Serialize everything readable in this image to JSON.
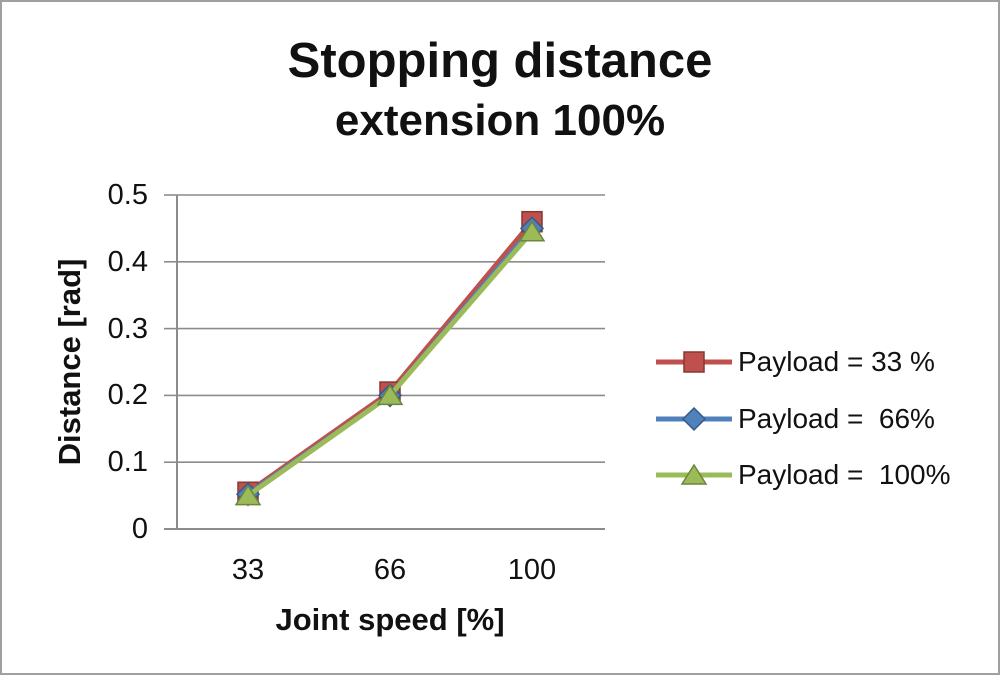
{
  "title": {
    "line1": "Stopping distance",
    "line2": "extension 100%"
  },
  "axes": {
    "y": {
      "title": "Distance [rad]",
      "ticks": [
        "0.5",
        "0.4",
        "0.3",
        "0.2",
        "0.1",
        "0"
      ]
    },
    "x": {
      "title": "Joint speed [%]",
      "ticks": [
        "33",
        "66",
        "100"
      ]
    }
  },
  "legend": {
    "items": [
      {
        "label": "Payload = 33 %",
        "color": "#C0504D",
        "marker": "square"
      },
      {
        "label": "Payload =  66%",
        "color": "#4F81BD",
        "marker": "diamond"
      },
      {
        "label": "Payload =  100%",
        "color": "#9BBB59",
        "marker": "triangle"
      }
    ]
  },
  "chart_data": {
    "type": "line",
    "title": "Stopping distance extension 100%",
    "xlabel": "Joint speed [%]",
    "ylabel": "Distance [rad]",
    "categories": [
      33,
      66,
      100
    ],
    "series": [
      {
        "name": "Payload = 33 %",
        "color": "#C0504D",
        "marker": "square",
        "values": [
          0.055,
          0.205,
          0.46
        ]
      },
      {
        "name": "Payload =  66%",
        "color": "#4F81BD",
        "marker": "diamond",
        "values": [
          0.052,
          0.2,
          0.45
        ]
      },
      {
        "name": "Payload =  100%",
        "color": "#9BBB59",
        "marker": "triangle",
        "values": [
          0.05,
          0.2,
          0.445
        ]
      }
    ],
    "ylim": [
      0,
      0.5
    ],
    "grid": "horizontal",
    "legend_position": "right"
  },
  "colors": {
    "grid": "#8c8c8c",
    "axis": "#8c8c8c",
    "border": "#a0a0a0",
    "text": "#111111"
  }
}
